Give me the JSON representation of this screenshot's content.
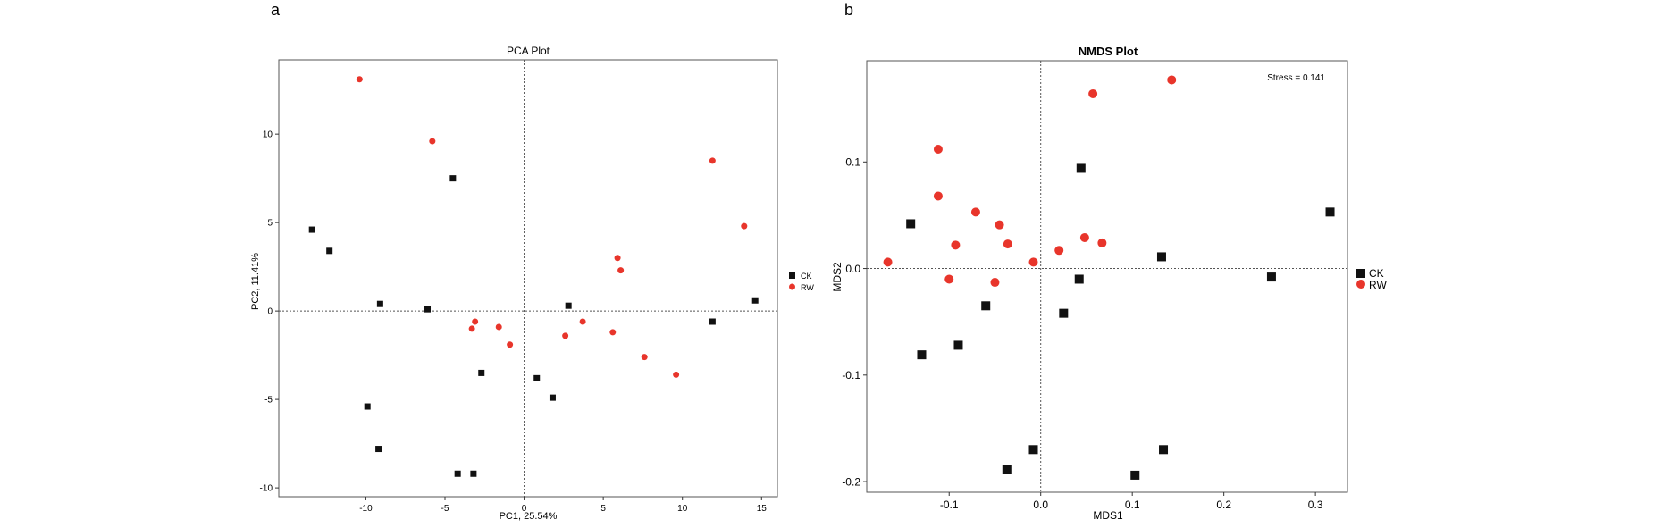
{
  "panels": [
    {
      "label": "a"
    },
    {
      "label": "b"
    }
  ],
  "colors": {
    "CK": "#111111",
    "RW": "#e8352b"
  },
  "chart_data": [
    {
      "type": "scatter",
      "title": "PCA Plot",
      "title_bold": false,
      "xlabel": "PC1, 25.54%",
      "ylabel": "PC2, 11.41%",
      "xlim": [
        -15.5,
        16
      ],
      "ylim": [
        -10.5,
        14.2
      ],
      "xticks": [
        -10,
        -5,
        0,
        5,
        10,
        15
      ],
      "yticks": [
        -10,
        -5,
        0,
        5,
        10
      ],
      "xtick_labels": [
        "-10",
        "-5",
        "0",
        "5",
        "10",
        "15"
      ],
      "ytick_labels": [
        "-10",
        "-5",
        "0",
        "5",
        "10"
      ],
      "reference_lines": {
        "x": 0,
        "y": 0
      },
      "legend": {
        "placement": "right",
        "entries": [
          "CK",
          "RW"
        ]
      },
      "series": [
        {
          "name": "CK",
          "marker": "square",
          "color": "#111111",
          "points": [
            [
              -13.4,
              4.6
            ],
            [
              -12.3,
              3.4
            ],
            [
              -9.1,
              0.4
            ],
            [
              -9.9,
              -5.4
            ],
            [
              -9.2,
              -7.8
            ],
            [
              -6.1,
              0.1
            ],
            [
              -4.5,
              7.5
            ],
            [
              -4.2,
              -9.2
            ],
            [
              -3.2,
              -9.2
            ],
            [
              -2.7,
              -3.5
            ],
            [
              0.8,
              -3.8
            ],
            [
              1.8,
              -4.9
            ],
            [
              2.8,
              0.3
            ],
            [
              11.9,
              -0.6
            ],
            [
              14.6,
              0.6
            ]
          ]
        },
        {
          "name": "RW",
          "marker": "circle",
          "color": "#e8352b",
          "points": [
            [
              -10.4,
              13.1
            ],
            [
              -5.8,
              9.6
            ],
            [
              -3.3,
              -1.0
            ],
            [
              -3.1,
              -0.6
            ],
            [
              -1.6,
              -0.9
            ],
            [
              -0.9,
              -1.9
            ],
            [
              2.6,
              -1.4
            ],
            [
              3.7,
              -0.6
            ],
            [
              5.6,
              -1.2
            ],
            [
              5.9,
              3.0
            ],
            [
              6.1,
              2.3
            ],
            [
              7.6,
              -2.6
            ],
            [
              9.6,
              -3.6
            ],
            [
              11.9,
              8.5
            ],
            [
              13.9,
              4.8
            ]
          ]
        }
      ]
    },
    {
      "type": "scatter",
      "title": "NMDS Plot",
      "title_bold": true,
      "xlabel": "MDS1",
      "ylabel": "MDS2",
      "xlim": [
        -0.19,
        0.335
      ],
      "ylim": [
        -0.21,
        0.195
      ],
      "xticks": [
        -0.1,
        0.0,
        0.1,
        0.2,
        0.3
      ],
      "yticks": [
        -0.2,
        -0.1,
        0.0,
        0.1
      ],
      "xtick_labels": [
        "-0.1",
        "0.0",
        "0.1",
        "0.2",
        "0.3"
      ],
      "ytick_labels": [
        "-0.2",
        "-0.1",
        "0.0",
        "0.1"
      ],
      "reference_lines": {
        "x": 0,
        "y": 0
      },
      "annotation": "Stress = 0.141",
      "legend": {
        "placement": "right",
        "entries": [
          "CK",
          "RW"
        ]
      },
      "series": [
        {
          "name": "CK",
          "marker": "square",
          "color": "#111111",
          "points": [
            [
              -0.142,
              0.042
            ],
            [
              -0.13,
              -0.081
            ],
            [
              -0.09,
              -0.072
            ],
            [
              -0.06,
              -0.035
            ],
            [
              -0.037,
              -0.189
            ],
            [
              -0.008,
              -0.17
            ],
            [
              0.025,
              -0.042
            ],
            [
              0.042,
              -0.01
            ],
            [
              0.044,
              0.094
            ],
            [
              0.103,
              -0.194
            ],
            [
              0.132,
              0.011
            ],
            [
              0.134,
              -0.17
            ],
            [
              0.252,
              -0.008
            ],
            [
              0.316,
              0.053
            ]
          ]
        },
        {
          "name": "RW",
          "marker": "circle",
          "color": "#e8352b",
          "points": [
            [
              -0.167,
              0.006
            ],
            [
              -0.112,
              0.112
            ],
            [
              -0.112,
              0.068
            ],
            [
              -0.1,
              -0.01
            ],
            [
              -0.093,
              0.022
            ],
            [
              -0.071,
              0.053
            ],
            [
              -0.05,
              -0.013
            ],
            [
              -0.045,
              0.041
            ],
            [
              -0.036,
              0.023
            ],
            [
              -0.008,
              0.006
            ],
            [
              0.02,
              0.017
            ],
            [
              0.048,
              0.029
            ],
            [
              0.057,
              0.164
            ],
            [
              0.067,
              0.024
            ],
            [
              0.143,
              0.177
            ]
          ]
        }
      ]
    }
  ]
}
